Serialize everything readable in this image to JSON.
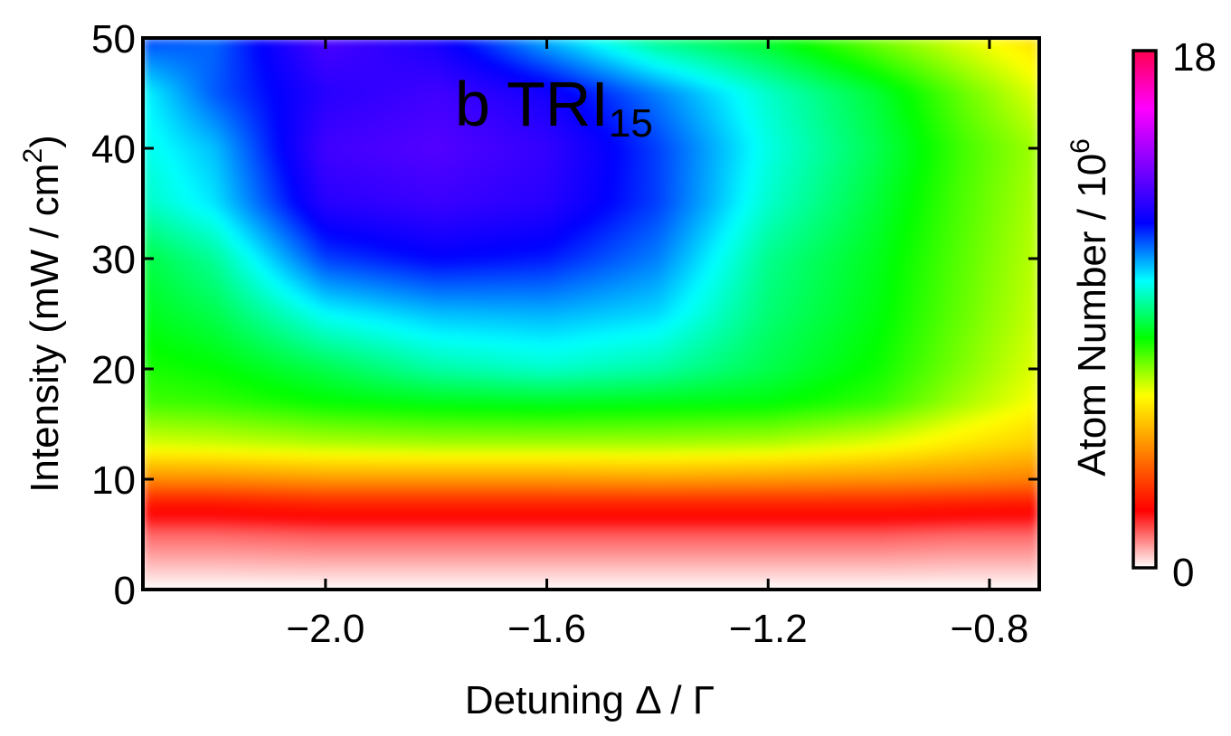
{
  "chart_data": {
    "type": "heatmap",
    "title": "b TRI",
    "title_subscript": "15",
    "xlabel": "Detuning Δ / Γ",
    "ylabel": "Intensity (mW / cm",
    "ylabel_superscript": "2",
    "ylabel_suffix": ")",
    "xlim": [
      -2.33,
      -0.71
    ],
    "ylim": [
      0,
      50
    ],
    "x_ticks": [
      {
        "value": -2.0,
        "label": "−2.0"
      },
      {
        "value": -1.6,
        "label": "−1.6"
      },
      {
        "value": -1.2,
        "label": "−1.2"
      },
      {
        "value": -0.8,
        "label": "−0.8"
      }
    ],
    "y_ticks": [
      {
        "value": 0,
        "label": "0"
      },
      {
        "value": 10,
        "label": "10"
      },
      {
        "value": 20,
        "label": "20"
      },
      {
        "value": 30,
        "label": "30"
      },
      {
        "value": 40,
        "label": "40"
      },
      {
        "value": 50,
        "label": "50"
      }
    ],
    "colorbar": {
      "label": "Atom Number / 10",
      "label_superscript": "6",
      "min": 0,
      "max": 18,
      "min_label": "0",
      "max_label": "18",
      "colors": [
        "#ffffff",
        "#ff0000",
        "#ff8000",
        "#ffff00",
        "#00ff00",
        "#00ffff",
        "#0000ff",
        "#8000ff",
        "#ff00ff",
        "#ff0050"
      ]
    },
    "x": [
      -2.33,
      -2.2,
      -2.0,
      -1.8,
      -1.6,
      -1.4,
      -1.2,
      -1.0,
      -0.85,
      -0.71
    ],
    "y": [
      0,
      5,
      8,
      10,
      13,
      17,
      20,
      25,
      30,
      35,
      40,
      45,
      50
    ],
    "z": [
      [
        0.0,
        0.0,
        0.0,
        0.0,
        0.0,
        0.0,
        0.0,
        0.0,
        0.0,
        0.0
      ],
      [
        1.2,
        1.2,
        1.3,
        1.3,
        1.3,
        1.3,
        1.3,
        1.3,
        1.2,
        1.2
      ],
      [
        2.5,
        2.5,
        2.7,
        2.7,
        2.7,
        2.7,
        2.7,
        2.7,
        2.6,
        2.5
      ],
      [
        4.2,
        4.2,
        4.4,
        4.4,
        4.4,
        4.5,
        4.4,
        4.3,
        4.2,
        4.0
      ],
      [
        6.2,
        6.3,
        6.5,
        6.6,
        6.6,
        6.6,
        6.5,
        6.1,
        5.6,
        5.2
      ],
      [
        7.5,
        7.6,
        8.0,
        8.2,
        8.3,
        8.2,
        8.1,
        7.6,
        6.7,
        6.0
      ],
      [
        7.8,
        8.0,
        8.6,
        9.3,
        9.6,
        9.3,
        8.6,
        7.9,
        7.0,
        6.2
      ],
      [
        8.2,
        8.6,
        10.0,
        10.5,
        10.6,
        10.3,
        8.9,
        8.1,
        7.2,
        6.4
      ],
      [
        8.5,
        9.2,
        11.5,
        12.0,
        11.8,
        11.0,
        9.1,
        8.2,
        7.3,
        6.5
      ],
      [
        9.5,
        10.2,
        12.6,
        12.9,
        12.6,
        11.5,
        9.6,
        8.4,
        7.4,
        6.6
      ],
      [
        9.8,
        10.5,
        13.0,
        13.3,
        12.8,
        11.5,
        9.8,
        8.6,
        7.5,
        6.7
      ],
      [
        10.0,
        11.3,
        12.6,
        13.0,
        12.3,
        11.0,
        9.6,
        8.4,
        7.2,
        6.2
      ],
      [
        11.5,
        11.2,
        13.2,
        12.3,
        10.5,
        9.0,
        8.2,
        7.0,
        6.2,
        5.5
      ]
    ]
  }
}
